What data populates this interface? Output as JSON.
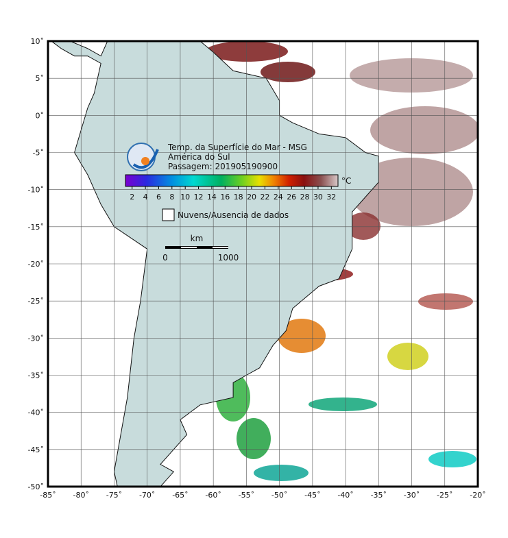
{
  "header": {
    "title": "Temp. da Superfície do Mar - MSG",
    "region": "América do Sul",
    "pass": "Passagem: 201905190900"
  },
  "colorbar": {
    "unit": "°C",
    "ticks": [
      2,
      4,
      6,
      8,
      10,
      12,
      14,
      16,
      18,
      20,
      22,
      24,
      26,
      28,
      30,
      32
    ]
  },
  "legend": {
    "clouds": "Nuvens/Ausencia de dados"
  },
  "scale": {
    "unit": "km",
    "start": "0",
    "end": "1000"
  },
  "axes": {
    "x_ticks": [
      {
        "value": -85,
        "label": "-85˚"
      },
      {
        "value": -80,
        "label": "-80˚"
      },
      {
        "value": -75,
        "label": "-75˚"
      },
      {
        "value": -70,
        "label": "-70˚"
      },
      {
        "value": -65,
        "label": "-65˚"
      },
      {
        "value": -60,
        "label": "-60˚"
      },
      {
        "value": -55,
        "label": "-55˚"
      },
      {
        "value": -50,
        "label": "-50˚"
      },
      {
        "value": -45,
        "label": "-45˚"
      },
      {
        "value": -40,
        "label": "-40˚"
      },
      {
        "value": -35,
        "label": "-35˚"
      },
      {
        "value": -30,
        "label": "-30˚"
      },
      {
        "value": -25,
        "label": "-25˚"
      },
      {
        "value": -20,
        "label": "-20˚"
      }
    ],
    "y_ticks": [
      {
        "value": 10,
        "label": "10˚"
      },
      {
        "value": 5,
        "label": "5˚"
      },
      {
        "value": 0,
        "label": "0˚"
      },
      {
        "value": -5,
        "label": "-5˚"
      },
      {
        "value": -10,
        "label": "-10˚"
      },
      {
        "value": -15,
        "label": "-15˚"
      },
      {
        "value": -20,
        "label": "-20˚"
      },
      {
        "value": -25,
        "label": "-25˚"
      },
      {
        "value": -30,
        "label": "-30˚"
      },
      {
        "value": -35,
        "label": "-35˚"
      },
      {
        "value": -40,
        "label": "-40˚"
      },
      {
        "value": -45,
        "label": "-45˚"
      },
      {
        "value": -50,
        "label": "-50˚"
      }
    ]
  }
}
